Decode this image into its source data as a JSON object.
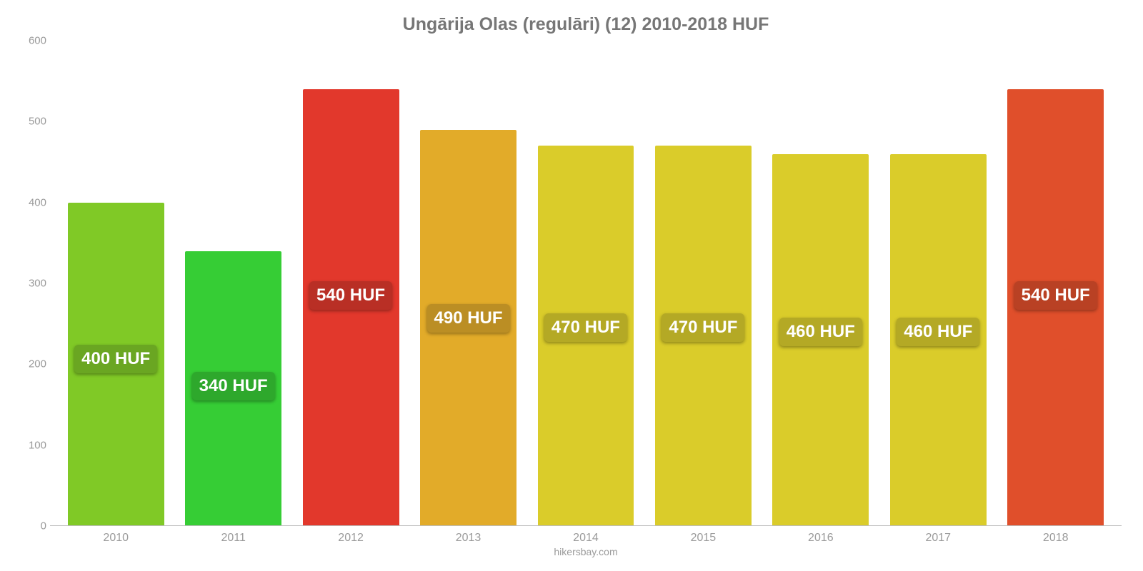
{
  "chart": {
    "type": "bar",
    "title": "Ungārija Olas (regulāri) (12) 2010-2018 HUF",
    "title_fontsize": 25,
    "title_color": "#767676",
    "background_color": "#ffffff",
    "baseline_color": "#bdbdbd",
    "ylim": [
      0,
      600
    ],
    "yticks": [
      0,
      100,
      200,
      300,
      400,
      500,
      600
    ],
    "ytick_color": "#9a9a9a",
    "ytick_fontsize": 15,
    "xlabels_color": "#9a9a9a",
    "xlabels_fontsize": 16,
    "bar_width_pct": 82,
    "value_label_fontsize": 24,
    "value_label_text_color": "#ffffff",
    "value_label_shadow": "0 2px 5px rgba(0,0,0,0.35)",
    "value_label_top_pct": 44,
    "categories": [
      "2010",
      "2011",
      "2012",
      "2013",
      "2014",
      "2015",
      "2016",
      "2017",
      "2018"
    ],
    "values": [
      400,
      340,
      540,
      490,
      470,
      470,
      460,
      460,
      540
    ],
    "value_labels": [
      "400 HUF",
      "340 HUF",
      "540 HUF",
      "490 HUF",
      "470 HUF",
      "470 HUF",
      "460 HUF",
      "460 HUF",
      "540 HUF"
    ],
    "bar_colors": [
      "#80c926",
      "#36cd35",
      "#e2382c",
      "#e2ab29",
      "#dacc2a",
      "#dacc2a",
      "#dacc2a",
      "#dacc2a",
      "#e04f2b"
    ],
    "label_bg_colors": [
      "#6aa622",
      "#2ea82c",
      "#b92f25",
      "#bb8e24",
      "#b4a925",
      "#b4a925",
      "#b4a925",
      "#b4a925",
      "#b94124"
    ],
    "attribution": "hikersbay.com",
    "attribution_fontsize": 14,
    "attribution_color": "#9a9a9a"
  }
}
